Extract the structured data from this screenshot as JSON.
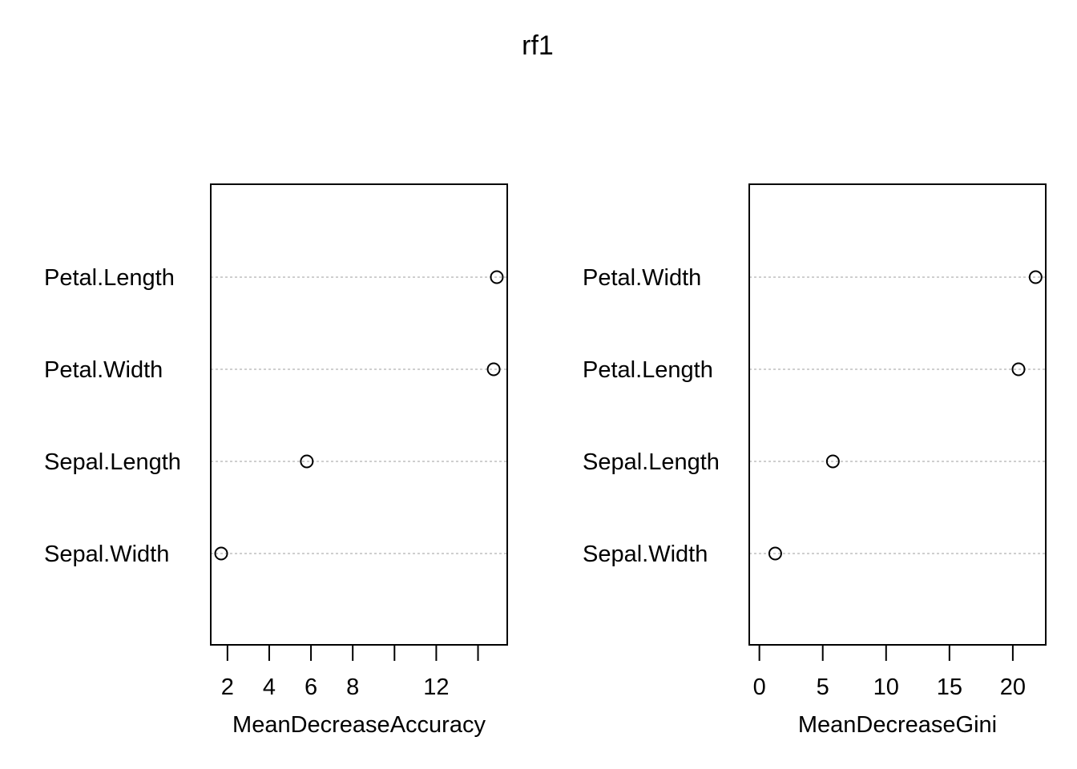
{
  "title": "rf1",
  "chart_data": [
    {
      "type": "scatter",
      "subtype": "dotchart",
      "xlabel": "MeanDecreaseAccuracy",
      "categories": [
        "Petal.Length",
        "Petal.Width",
        "Sepal.Length",
        "Sepal.Width"
      ],
      "values": [
        14.9,
        14.75,
        5.8,
        1.7
      ],
      "xticks": [
        2,
        4,
        6,
        8,
        10,
        12,
        14
      ],
      "xtick_labels": [
        "2",
        "4",
        "6",
        "8",
        "",
        "12",
        ""
      ],
      "xlim": [
        1.2,
        15.4
      ],
      "grid": "dotted-horizontal"
    },
    {
      "type": "scatter",
      "subtype": "dotchart",
      "xlabel": "MeanDecreaseGini",
      "categories": [
        "Petal.Width",
        "Petal.Length",
        "Sepal.Length",
        "Sepal.Width"
      ],
      "values": [
        21.8,
        20.45,
        5.8,
        1.25
      ],
      "xticks": [
        0,
        5,
        10,
        15,
        20
      ],
      "xtick_labels": [
        "0",
        "5",
        "10",
        "15",
        "20"
      ],
      "xlim": [
        -0.8,
        22.6
      ],
      "grid": "dotted-horizontal"
    }
  ]
}
